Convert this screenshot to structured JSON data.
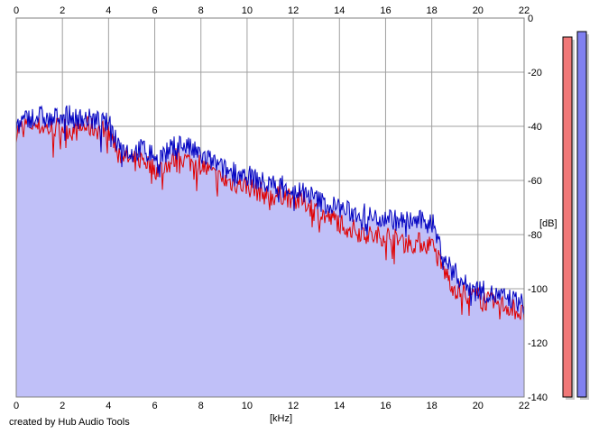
{
  "credit": "created by Hub Audio Tools",
  "chart_data": {
    "type": "area",
    "xlabel": "[kHz]",
    "ylabel": "[dB]",
    "xlim": [
      0,
      22
    ],
    "ylim": [
      -140,
      0
    ],
    "x_ticks": [
      0,
      2,
      4,
      6,
      8,
      10,
      12,
      14,
      16,
      18,
      20,
      22
    ],
    "y_ticks": [
      0,
      -20,
      -40,
      -60,
      -80,
      -100,
      -120,
      -140
    ],
    "grid": true,
    "colors": {
      "fill": "#c0c0f8",
      "channel_a": "#e00000",
      "channel_b": "#0000c0",
      "grid": "#a0a0a0",
      "meter_a": "#f07878",
      "meter_b": "#8080f0"
    },
    "series": [
      {
        "color": "#e00000",
        "x": [
          0,
          0.5,
          1,
          1.5,
          2,
          2.5,
          3,
          3.5,
          4,
          4.5,
          5,
          5.5,
          6,
          6.5,
          7,
          7.5,
          8,
          8.5,
          9,
          9.5,
          10,
          10.5,
          11,
          11.5,
          12,
          12.5,
          13,
          13.5,
          14,
          14.5,
          15,
          15.5,
          16,
          16.5,
          17,
          17.5,
          18,
          18.5,
          19,
          19.5,
          20,
          20.5,
          21,
          21.5,
          22
        ],
        "values": [
          -42,
          -39,
          -40,
          -41,
          -40,
          -42,
          -40,
          -41,
          -42,
          -50,
          -53,
          -52,
          -56,
          -55,
          -51,
          -53,
          -54,
          -58,
          -60,
          -61,
          -62,
          -64,
          -66,
          -65,
          -67,
          -68,
          -71,
          -74,
          -75,
          -78,
          -79,
          -81,
          -80,
          -82,
          -83,
          -83,
          -84,
          -93,
          -100,
          -102,
          -103,
          -105,
          -106,
          -107,
          -110
        ]
      },
      {
        "color": "#0000c0",
        "x": [
          0,
          0.5,
          1,
          1.5,
          2,
          2.5,
          3,
          3.5,
          4,
          4.5,
          5,
          5.5,
          6,
          6.5,
          7,
          7.5,
          8,
          8.5,
          9,
          9.5,
          10,
          10.5,
          11,
          11.5,
          12,
          12.5,
          13,
          13.5,
          14,
          14.5,
          15,
          15.5,
          16,
          16.5,
          17,
          17.5,
          18,
          18.5,
          19,
          19.5,
          20,
          20.5,
          21,
          21.5,
          22
        ],
        "values": [
          -40,
          -37,
          -36,
          -38,
          -35,
          -37,
          -37,
          -38,
          -39,
          -47,
          -50,
          -48,
          -51,
          -50,
          -46,
          -48,
          -51,
          -53,
          -56,
          -57,
          -58,
          -60,
          -62,
          -61,
          -64,
          -64,
          -67,
          -69,
          -70,
          -72,
          -72,
          -74,
          -73,
          -75,
          -75,
          -75,
          -75,
          -88,
          -94,
          -99,
          -100,
          -102,
          -103,
          -104,
          -106
        ]
      }
    ],
    "meters": [
      {
        "color": "#f07878",
        "top_db": -7
      },
      {
        "color": "#8080f0",
        "top_db": -5
      }
    ]
  }
}
